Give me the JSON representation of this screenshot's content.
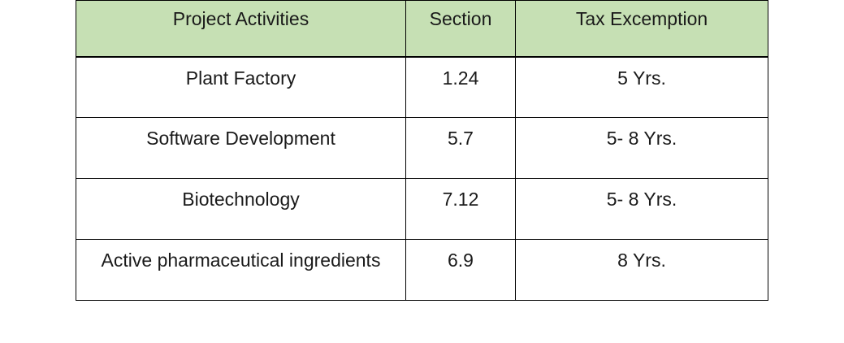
{
  "table": {
    "headers": [
      "Project Activities",
      "Section",
      "Tax Excemption"
    ],
    "rows": [
      [
        "Plant Factory",
        "1.24",
        "5 Yrs."
      ],
      [
        "Software Development",
        "5.7",
        "5- 8 Yrs."
      ],
      [
        "Biotechnology",
        "7.12",
        "5- 8 Yrs."
      ],
      [
        "Active pharmaceutical ingredients",
        "6.9",
        "8 Yrs."
      ]
    ],
    "header_color": "#c6e0b4"
  }
}
